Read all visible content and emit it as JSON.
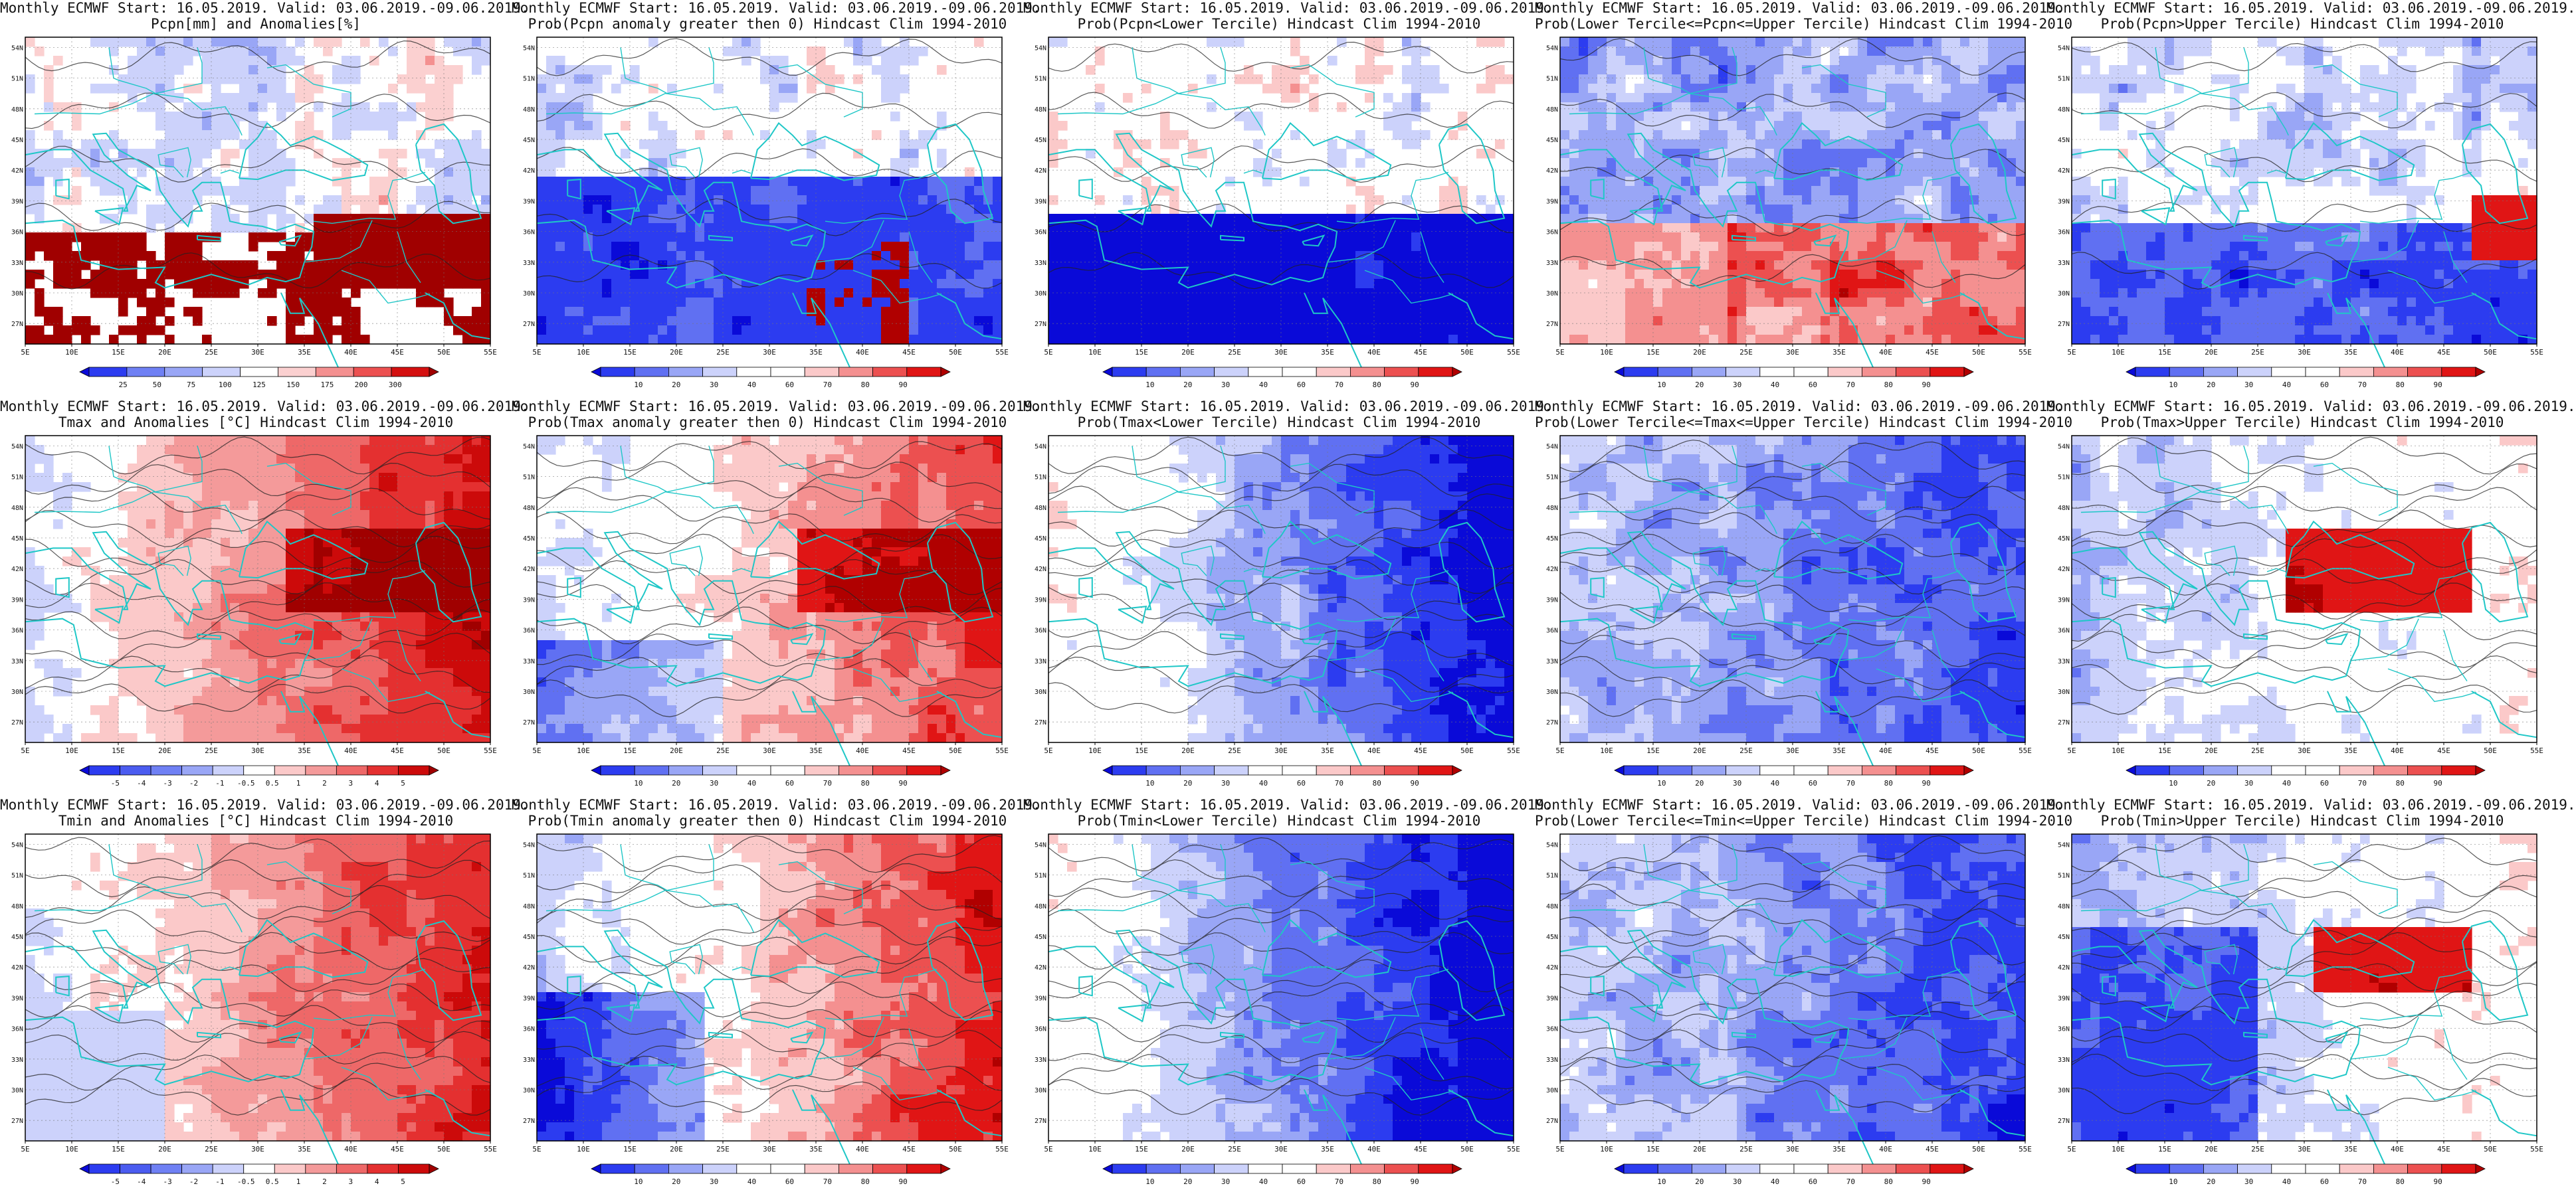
{
  "panels": [
    {
      "title1": "Monthly ECMWF Start: 16.05.2019. Valid: 03.06.2019.-09.06.2019.",
      "title2": "Pcpn[mm] and Anomalies[%]",
      "cbar": "anom_pcpn",
      "pattern": "p1"
    },
    {
      "title1": "Monthly ECMWF Start: 16.05.2019. Valid: 03.06.2019.-09.06.2019.",
      "title2": "Prob(Pcpn anomaly greater then 0) Hindcast Clim 1994-2010",
      "cbar": "prob",
      "pattern": "p2"
    },
    {
      "title1": "Monthly ECMWF Start: 16.05.2019. Valid: 03.06.2019.-09.06.2019.",
      "title2": "Prob(Pcpn<Lower Tercile) Hindcast Clim 1994-2010",
      "cbar": "prob",
      "pattern": "p3"
    },
    {
      "title1": "Monthly ECMWF Start: 16.05.2019. Valid: 03.06.2019.-09.06.2019.",
      "title2": "Prob(Lower Tercile<=Pcpn<=Upper Tercile) Hindcast Clim 1994-2010",
      "cbar": "prob",
      "pattern": "p4"
    },
    {
      "title1": "Monthly ECMWF Start: 16.05.2019. Valid: 03.06.2019.-09.06.2019.",
      "title2": "Prob(Pcpn>Upper Tercile) Hindcast Clim 1994-2010",
      "cbar": "prob",
      "pattern": "p5"
    },
    {
      "title1": "Monthly ECMWF Start: 16.05.2019. Valid: 03.06.2019.-09.06.2019.",
      "title2": "Tmax and Anomalies [°C] Hindcast Clim 1994-2010",
      "cbar": "anom_t",
      "pattern": "t1"
    },
    {
      "title1": "Monthly ECMWF Start: 16.05.2019. Valid: 03.06.2019.-09.06.2019.",
      "title2": "Prob(Tmax anomaly greater then 0) Hindcast Clim 1994-2010",
      "cbar": "prob",
      "pattern": "t2"
    },
    {
      "title1": "Monthly ECMWF Start: 16.05.2019. Valid: 03.06.2019.-09.06.2019.",
      "title2": "Prob(Tmax<Lower Tercile) Hindcast Clim 1994-2010",
      "cbar": "prob",
      "pattern": "t3"
    },
    {
      "title1": "Monthly ECMWF Start: 16.05.2019. Valid: 03.06.2019.-09.06.2019.",
      "title2": "Prob(Lower Tercile<=Tmax<=Upper Tercile) Hindcast Clim 1994-2010",
      "cbar": "prob",
      "pattern": "t4"
    },
    {
      "title1": "Monthly ECMWF Start: 16.05.2019. Valid: 03.06.2019.-09.06.2019.",
      "title2": "Prob(Tmax>Upper Tercile) Hindcast Clim 1994-2010",
      "cbar": "prob",
      "pattern": "t5"
    },
    {
      "title1": "Monthly ECMWF Start: 16.05.2019. Valid: 03.06.2019.-09.06.2019.",
      "title2": "Tmin and Anomalies [°C] Hindcast Clim 1994-2010",
      "cbar": "anom_t",
      "pattern": "n1"
    },
    {
      "title1": "Monthly ECMWF Start: 16.05.2019. Valid: 03.06.2019.-09.06.2019.",
      "title2": "Prob(Tmin anomaly greater then 0) Hindcast Clim 1994-2010",
      "cbar": "prob",
      "pattern": "n2"
    },
    {
      "title1": "Monthly ECMWF Start: 16.05.2019. Valid: 03.06.2019.-09.06.2019.",
      "title2": "Prob(Tmin<Lower Tercile) Hindcast Clim 1994-2010",
      "cbar": "prob",
      "pattern": "n3"
    },
    {
      "title1": "Monthly ECMWF Start: 16.05.2019. Valid: 03.06.2019.-09.06.2019.",
      "title2": "Prob(Lower Tercile<=Tmin<=Upper Tercile) Hindcast Clim 1994-2010",
      "cbar": "prob",
      "pattern": "n4"
    },
    {
      "title1": "Monthly ECMWF Start: 16.05.2019. Valid: 03.06.2019.-09.06.2019.",
      "title2": "Prob(Tmin>Upper Tercile) Hindcast Clim 1994-2010",
      "cbar": "prob",
      "pattern": "n5"
    }
  ],
  "lon_labels": [
    "5E",
    "10E",
    "15E",
    "20E",
    "25E",
    "30E",
    "35E",
    "40E",
    "45E",
    "50E",
    "55E"
  ],
  "lat_labels": [
    "54N",
    "51N",
    "48N",
    "45N",
    "42N",
    "39N",
    "36N",
    "33N",
    "30N",
    "27N"
  ],
  "colorbars": {
    "prob": {
      "labels": [
        "10",
        "20",
        "30",
        "40",
        "60",
        "70",
        "80",
        "90"
      ],
      "colors": [
        "#0a0ad8",
        "#2c3cf0",
        "#6070f2",
        "#99a6f6",
        "#ccd2fb",
        "#ffffff",
        "#ffffff",
        "#fbc9c9",
        "#f49090",
        "#ec5050",
        "#e01515",
        "#b00000"
      ]
    },
    "anom_t": {
      "labels": [
        "-5",
        "-4",
        "-3",
        "-2",
        "-1",
        "-0.5",
        "0.5",
        "1",
        "2",
        "3",
        "4",
        "5"
      ],
      "colors": [
        "#0a0ad8",
        "#2c3cf0",
        "#4b5cf0",
        "#6f80f4",
        "#99a6f6",
        "#ccd2fb",
        "#ffffff",
        "#fbc9c9",
        "#f49a9a",
        "#ee6868",
        "#e43030",
        "#cc0a0a",
        "#a00000"
      ]
    },
    "anom_pcpn": {
      "labels": [
        "25",
        "50",
        "75",
        "100",
        "125",
        "150",
        "175",
        "200",
        "300"
      ],
      "colors": [
        "#0a0ad8",
        "#2c3cf0",
        "#6f80f4",
        "#99a6f6",
        "#ccd2fb",
        "#ffffff",
        "#fbd0d0",
        "#f49090",
        "#ec5050",
        "#d41010",
        "#a00000"
      ]
    }
  },
  "coast_color": "#1fc7c7",
  "contour_color": "#222222",
  "grid_color": "#777777"
}
